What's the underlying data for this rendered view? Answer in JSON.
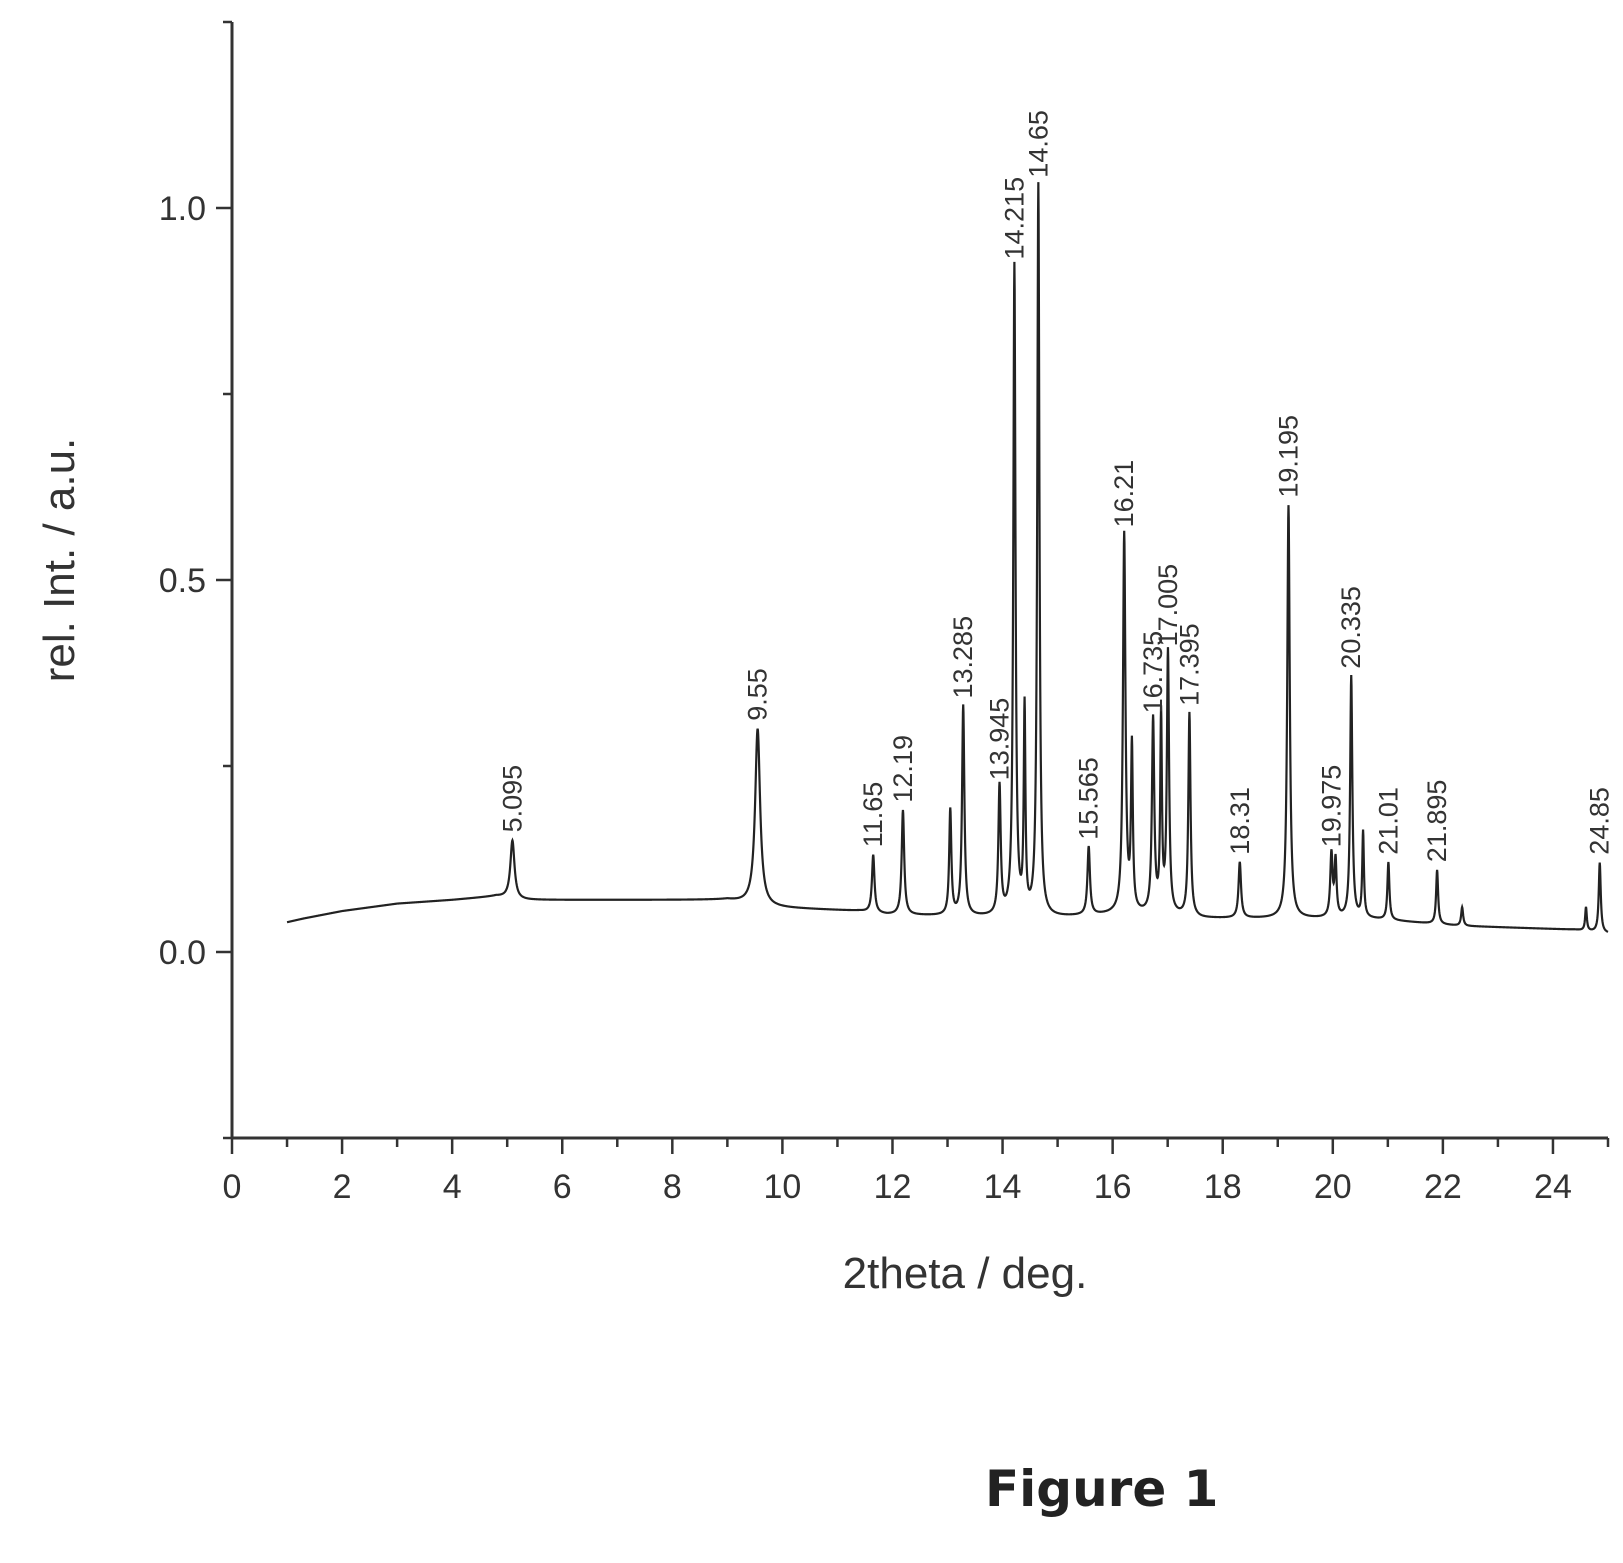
{
  "caption": "Figure 1",
  "chart_data": {
    "type": "line",
    "title": "",
    "xlabel": "2theta / deg.",
    "ylabel": "rel. Int. / a.u.",
    "xlim": [
      0,
      25
    ],
    "ylim": [
      -0.25,
      1.25
    ],
    "x_ticks": [
      "0",
      "2",
      "4",
      "6",
      "8",
      "10",
      "12",
      "14",
      "16",
      "18",
      "20",
      "22",
      "24"
    ],
    "y_ticks": [
      "0.0",
      "0.5",
      "1.0"
    ],
    "grid": false,
    "baseline": [
      [
        1.0,
        0.04
      ],
      [
        1.3,
        0.045
      ],
      [
        2.0,
        0.055
      ],
      [
        3.0,
        0.065
      ],
      [
        4.0,
        0.07
      ],
      [
        4.8,
        0.075
      ],
      [
        5.2,
        0.07
      ],
      [
        9.0,
        0.07
      ],
      [
        9.7,
        0.06
      ],
      [
        11.4,
        0.055
      ],
      [
        11.9,
        0.05
      ],
      [
        14.7,
        0.045
      ],
      [
        16.0,
        0.05
      ],
      [
        16.9,
        0.05
      ],
      [
        17.6,
        0.045
      ],
      [
        19.0,
        0.045
      ],
      [
        20.6,
        0.045
      ],
      [
        22.3,
        0.035
      ],
      [
        24.4,
        0.03
      ],
      [
        25.0,
        0.025
      ]
    ],
    "peaks": [
      {
        "label": "5.095",
        "x": 5.095,
        "y": 0.15,
        "width": 0.25
      },
      {
        "label": "9.55",
        "x": 9.55,
        "y": 0.3,
        "width": 0.3
      },
      {
        "label": "11.65",
        "x": 11.65,
        "y": 0.13,
        "width": 0.15
      },
      {
        "label": "12.19",
        "x": 12.19,
        "y": 0.19,
        "width": 0.15
      },
      {
        "label": "13.285",
        "x": 13.285,
        "y": 0.33,
        "width": 0.14
      },
      {
        "label": "13.945",
        "x": 13.945,
        "y": 0.22,
        "width": 0.14
      },
      {
        "label": "14.215",
        "x": 14.215,
        "y": 0.92,
        "width": 0.13
      },
      {
        "label": "14.65",
        "x": 14.65,
        "y": 1.03,
        "width": 0.13
      },
      {
        "label": "15.565",
        "x": 15.565,
        "y": 0.14,
        "width": 0.15
      },
      {
        "label": "16.21",
        "x": 16.21,
        "y": 0.56,
        "width": 0.15
      },
      {
        "label": "17.005",
        "x": 17.005,
        "y": 0.4,
        "width": 0.13
      },
      {
        "label": "17.395",
        "x": 17.395,
        "y": 0.32,
        "width": 0.13
      },
      {
        "label": "16.735",
        "x": 16.735,
        "y": 0.31,
        "width": 0.14
      },
      {
        "label": "18.31",
        "x": 18.31,
        "y": 0.12,
        "width": 0.15
      },
      {
        "label": "19.195",
        "x": 19.195,
        "y": 0.6,
        "width": 0.15
      },
      {
        "label": "20.335",
        "x": 20.335,
        "y": 0.37,
        "width": 0.13
      },
      {
        "label": "19.975",
        "x": 19.975,
        "y": 0.13,
        "width": 0.14
      },
      {
        "label": "21.01",
        "x": 21.01,
        "y": 0.12,
        "width": 0.12
      },
      {
        "label": "21.895",
        "x": 21.895,
        "y": 0.11,
        "width": 0.12
      },
      {
        "label": "24.85",
        "x": 24.85,
        "y": 0.12,
        "width": 0.12
      }
    ],
    "minor_peaks": [
      {
        "x": 13.05,
        "y": 0.19,
        "width": 0.13
      },
      {
        "x": 14.4,
        "y": 0.32,
        "width": 0.1
      },
      {
        "x": 16.35,
        "y": 0.27,
        "width": 0.11
      },
      {
        "x": 16.88,
        "y": 0.31,
        "width": 0.1
      },
      {
        "x": 20.05,
        "y": 0.12,
        "width": 0.12
      },
      {
        "x": 20.55,
        "y": 0.16,
        "width": 0.1
      },
      {
        "x": 22.35,
        "y": 0.06,
        "width": 0.12
      },
      {
        "x": 24.6,
        "y": 0.06,
        "width": 0.1
      }
    ]
  }
}
